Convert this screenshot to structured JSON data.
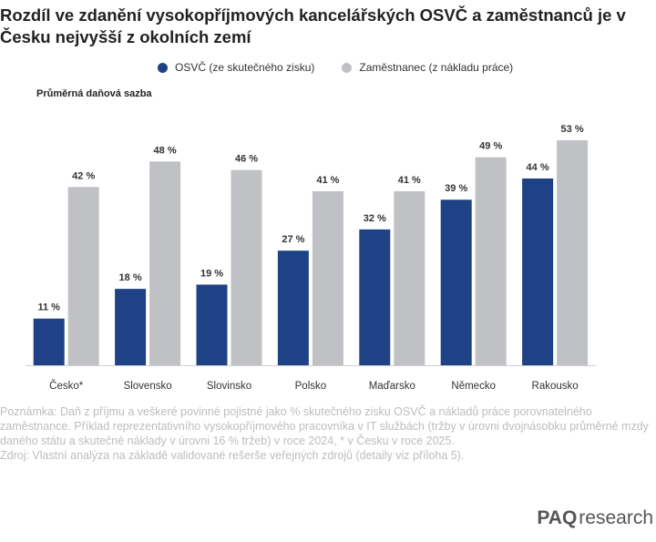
{
  "title": "Rozdíl ve zdanění vysokopříjmových kancelářských OSVČ a zaměstnanců je v Česku nejvyšší z okolních zemí",
  "subtitle": "Průměrná daňová sazba",
  "legend": {
    "series1": "OSVČ (ze skutečného zisku)",
    "series2": "Zaměstnanec (z nákladu práce)"
  },
  "colors": {
    "series1": "#1f4287",
    "series2": "#bfc1c4"
  },
  "chart_data": {
    "type": "bar",
    "title": "Průměrná daňová sazba",
    "categories": [
      "Česko*",
      "Slovensko",
      "Slovinsko",
      "Polsko",
      "Maďarsko",
      "Německo",
      "Rakousko"
    ],
    "series": [
      {
        "name": "OSVČ (ze skutečného zisku)",
        "values": [
          11,
          18,
          19,
          27,
          32,
          39,
          44
        ]
      },
      {
        "name": "Zaměstnanec (z nákladu práce)",
        "values": [
          42,
          48,
          46,
          41,
          41,
          49,
          53
        ]
      }
    ],
    "value_suffix": " %",
    "ylim": [
      0,
      53
    ],
    "xlabel": "",
    "ylabel": ""
  },
  "note": "Poznámka: Daň z příjmu a veškeré povinné pojistné jako % skutečného zisku OSVČ a nákladů práce porovnatelného zaměstnance. Příklad reprezentativního vysokopříjmového pracovníka v IT službách (tržby v úrovni dvojnásobku průměrné mzdy daného státu a skutečné náklady v úrovni 16 % tržeb) v roce 2024, * v Česku v roce 2025.",
  "source": "Zdroj: Vlastní analýza na základě validované rešerše veřejných zdrojů (detaily viz příloha 5).",
  "brand": {
    "bold": "PAQ",
    "light": "research"
  }
}
